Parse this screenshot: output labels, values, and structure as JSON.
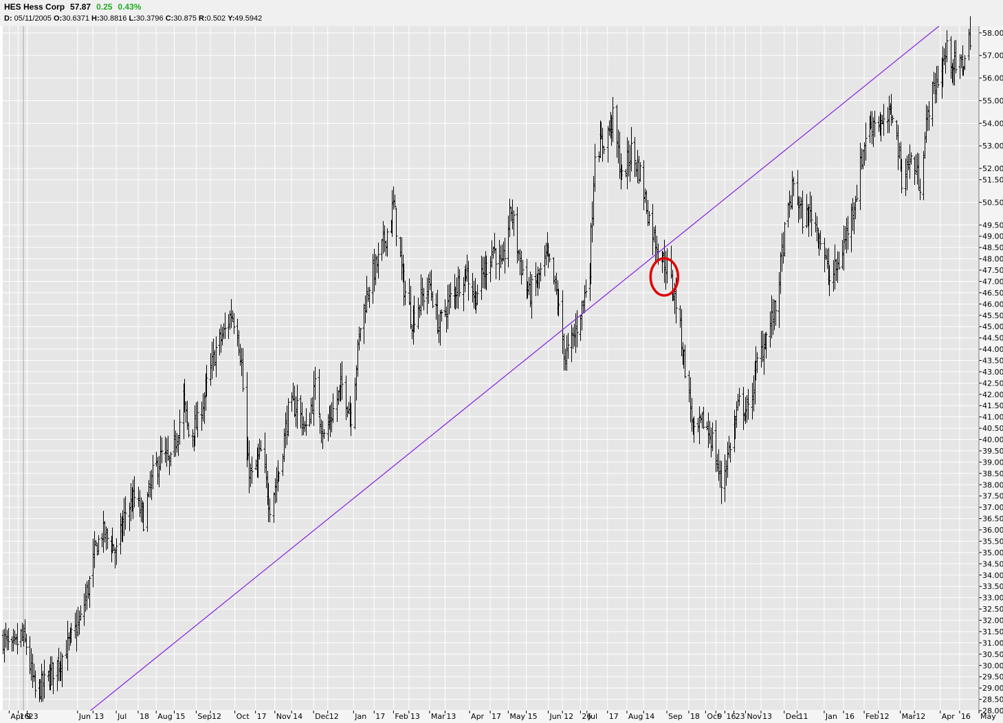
{
  "header": {
    "symbol_name": "HES Hess Corp",
    "last_price": "57.87",
    "change": "0.25",
    "change_pct": "0.43%",
    "ohlc": {
      "date_label": "D:",
      "date": "05/11/2005",
      "open_label": "O:",
      "open": "30.6371",
      "high_label": "H:",
      "high": "30.8816",
      "low_label": "L:",
      "low": "30.3796",
      "close_label": "C:",
      "close": "30.875",
      "range_label": "R:",
      "range": "0.502",
      "y_label": "Y:",
      "y": "49.5942"
    }
  },
  "colors": {
    "plot_background": "#e6e6e6",
    "grid": "#ffffff",
    "bars": "#000000",
    "trendline": "#8a2be2",
    "highlight_circle": "#e00000",
    "change_positive": "#22aa22"
  },
  "chart_data": {
    "type": "ohlc-bar",
    "y_axis_position": "right",
    "ylim": [
      28.0,
      58.3
    ],
    "y_ticks": [
      "28.00",
      "28.50",
      "29.00",
      "29.50",
      "30.00",
      "30.50",
      "31.00",
      "31.50",
      "32.00",
      "32.50",
      "33.00",
      "33.50",
      "34.00",
      "34.50",
      "35.00",
      "35.50",
      "36.00",
      "36.50",
      "37.00",
      "37.50",
      "38.00",
      "38.50",
      "39.00",
      "39.50",
      "40.00",
      "40.50",
      "41.00",
      "41.50",
      "42.00",
      "42.50",
      "43.00",
      "43.50",
      "44.00",
      "44.50",
      "45.00",
      "45.50",
      "46.00",
      "46.50",
      "47.00",
      "47.50",
      "48.00",
      "48.50",
      "49.00",
      "49.50",
      "50.50",
      "51.50",
      "52.00",
      "53.00",
      "54.00",
      "55.00",
      "56.00",
      "57.00",
      "58.00"
    ],
    "x_range": [
      "2005-04-04",
      "2007-05-01"
    ],
    "x_ticks": [
      {
        "date": "2005-04-09",
        "label": "Apr 9"
      },
      {
        "date": "2005-04-16",
        "label": "16"
      },
      {
        "date": "2005-04-23",
        "label": "23"
      },
      {
        "date": "2005-06-01",
        "label": "Jun"
      },
      {
        "date": "2005-06-13",
        "label": "13"
      },
      {
        "date": "2005-07-01",
        "label": "Jul"
      },
      {
        "date": "2005-07-18",
        "label": "18"
      },
      {
        "date": "2005-08-01",
        "label": "Aug"
      },
      {
        "date": "2005-08-15",
        "label": "15"
      },
      {
        "date": "2005-09-01",
        "label": "Sep"
      },
      {
        "date": "2005-09-12",
        "label": "12"
      },
      {
        "date": "2005-10-01",
        "label": "Oct"
      },
      {
        "date": "2005-10-17",
        "label": "17"
      },
      {
        "date": "2005-11-01",
        "label": "Nov"
      },
      {
        "date": "2005-11-14",
        "label": "14"
      },
      {
        "date": "2005-12-01",
        "label": "Dec"
      },
      {
        "date": "2005-12-12",
        "label": "12"
      },
      {
        "date": "2006-01-01",
        "label": "Jan"
      },
      {
        "date": "2006-01-17",
        "label": "17"
      },
      {
        "date": "2006-02-01",
        "label": "Feb"
      },
      {
        "date": "2006-02-13",
        "label": "13"
      },
      {
        "date": "2006-03-01",
        "label": "Mar"
      },
      {
        "date": "2006-03-13",
        "label": "13"
      },
      {
        "date": "2006-04-01",
        "label": "Apr"
      },
      {
        "date": "2006-04-17",
        "label": "17"
      },
      {
        "date": "2006-05-01",
        "label": "May"
      },
      {
        "date": "2006-05-15",
        "label": "15"
      },
      {
        "date": "2006-06-01",
        "label": "Jun"
      },
      {
        "date": "2006-06-12",
        "label": "12"
      },
      {
        "date": "2006-06-26",
        "label": "26"
      },
      {
        "date": "2006-07-01",
        "label": "Jul"
      },
      {
        "date": "2006-07-17",
        "label": "17"
      },
      {
        "date": "2006-08-01",
        "label": "Aug"
      },
      {
        "date": "2006-08-14",
        "label": "14"
      },
      {
        "date": "2006-09-01",
        "label": "Sep"
      },
      {
        "date": "2006-09-18",
        "label": "18"
      },
      {
        "date": "2006-10-01",
        "label": "Oct"
      },
      {
        "date": "2006-10-09",
        "label": "9"
      },
      {
        "date": "2006-10-16",
        "label": "16"
      },
      {
        "date": "2006-10-23",
        "label": "23"
      },
      {
        "date": "2006-11-01",
        "label": "Nov"
      },
      {
        "date": "2006-11-13",
        "label": "13"
      },
      {
        "date": "2006-12-01",
        "label": "Dec"
      },
      {
        "date": "2006-12-11",
        "label": "11"
      },
      {
        "date": "2007-01-01",
        "label": "Jan"
      },
      {
        "date": "2007-01-16",
        "label": "16"
      },
      {
        "date": "2007-02-01",
        "label": "Feb"
      },
      {
        "date": "2007-02-12",
        "label": "12"
      },
      {
        "date": "2007-03-01",
        "label": "Mar"
      },
      {
        "date": "2007-03-12",
        "label": "12"
      },
      {
        "date": "2007-04-01",
        "label": "Apr"
      },
      {
        "date": "2007-04-16",
        "label": "16"
      },
      {
        "date": "2007-05-01",
        "label": "May"
      }
    ],
    "price_path": [
      [
        "2005-04-04",
        31.2
      ],
      [
        "2005-04-11",
        30.6
      ],
      [
        "2005-04-18",
        31.3
      ],
      [
        "2005-04-22",
        30.9
      ],
      [
        "2005-04-29",
        28.8
      ],
      [
        "2005-05-06",
        29.2
      ],
      [
        "2005-05-13",
        29.8
      ],
      [
        "2005-05-20",
        30.4
      ],
      [
        "2005-05-27",
        31.2
      ],
      [
        "2005-06-03",
        32.0
      ],
      [
        "2005-06-10",
        33.7
      ],
      [
        "2005-06-15",
        35.2
      ],
      [
        "2005-06-20",
        35.9
      ],
      [
        "2005-06-27",
        35.4
      ],
      [
        "2005-07-01",
        35.0
      ],
      [
        "2005-07-08",
        36.8
      ],
      [
        "2005-07-15",
        37.4
      ],
      [
        "2005-07-22",
        36.5
      ],
      [
        "2005-07-29",
        38.4
      ],
      [
        "2005-08-05",
        39.3
      ],
      [
        "2005-08-12",
        38.9
      ],
      [
        "2005-08-19",
        40.8
      ],
      [
        "2005-08-22",
        41.8
      ],
      [
        "2005-08-26",
        40.2
      ],
      [
        "2005-09-02",
        40.7
      ],
      [
        "2005-09-09",
        42.4
      ],
      [
        "2005-09-16",
        44.0
      ],
      [
        "2005-09-23",
        44.8
      ],
      [
        "2005-09-28",
        45.6
      ],
      [
        "2005-10-03",
        44.9
      ],
      [
        "2005-10-06",
        43.3
      ],
      [
        "2005-10-10",
        39.1
      ],
      [
        "2005-10-14",
        38.3
      ],
      [
        "2005-10-21",
        39.4
      ],
      [
        "2005-10-28",
        37.1
      ],
      [
        "2005-11-04",
        38.6
      ],
      [
        "2005-11-11",
        41.2
      ],
      [
        "2005-11-18",
        41.6
      ],
      [
        "2005-11-25",
        40.3
      ],
      [
        "2005-12-02",
        42.3
      ],
      [
        "2005-12-09",
        40.1
      ],
      [
        "2005-12-16",
        41.3
      ],
      [
        "2005-12-23",
        42.4
      ],
      [
        "2005-12-30",
        41.1
      ],
      [
        "2006-01-06",
        45.0
      ],
      [
        "2006-01-13",
        46.9
      ],
      [
        "2006-01-20",
        47.9
      ],
      [
        "2006-01-27",
        49.2
      ],
      [
        "2006-02-01",
        50.4
      ],
      [
        "2006-02-08",
        47.0
      ],
      [
        "2006-02-15",
        45.3
      ],
      [
        "2006-02-22",
        46.2
      ],
      [
        "2006-03-01",
        46.8
      ],
      [
        "2006-03-08",
        45.0
      ],
      [
        "2006-03-15",
        46.0
      ],
      [
        "2006-03-22",
        46.8
      ],
      [
        "2006-03-29",
        47.5
      ],
      [
        "2006-04-05",
        46.3
      ],
      [
        "2006-04-12",
        47.4
      ],
      [
        "2006-04-19",
        48.5
      ],
      [
        "2006-04-26",
        47.5
      ],
      [
        "2006-05-03",
        50.2
      ],
      [
        "2006-05-10",
        47.9
      ],
      [
        "2006-05-17",
        46.4
      ],
      [
        "2006-05-24",
        47.1
      ],
      [
        "2006-05-31",
        48.1
      ],
      [
        "2006-06-07",
        46.5
      ],
      [
        "2006-06-14",
        43.6
      ],
      [
        "2006-06-21",
        44.6
      ],
      [
        "2006-06-28",
        46.1
      ],
      [
        "2006-07-03",
        47.7
      ],
      [
        "2006-07-07",
        52.8
      ],
      [
        "2006-07-14",
        53.2
      ],
      [
        "2006-07-21",
        54.2
      ],
      [
        "2006-07-28",
        51.5
      ],
      [
        "2006-08-04",
        52.8
      ],
      [
        "2006-08-11",
        51.8
      ],
      [
        "2006-08-18",
        49.8
      ],
      [
        "2006-08-25",
        48.4
      ],
      [
        "2006-09-01",
        47.6
      ],
      [
        "2006-09-08",
        46.1
      ],
      [
        "2006-09-15",
        43.2
      ],
      [
        "2006-09-22",
        40.1
      ],
      [
        "2006-09-29",
        40.8
      ],
      [
        "2006-10-06",
        40.0
      ],
      [
        "2006-10-13",
        38.0
      ],
      [
        "2006-10-20",
        39.8
      ],
      [
        "2006-10-27",
        41.6
      ],
      [
        "2006-11-03",
        41.2
      ],
      [
        "2006-11-10",
        43.4
      ],
      [
        "2006-11-17",
        44.6
      ],
      [
        "2006-11-24",
        45.8
      ],
      [
        "2006-12-01",
        49.1
      ],
      [
        "2006-12-08",
        51.3
      ],
      [
        "2006-12-15",
        49.8
      ],
      [
        "2006-12-22",
        50.0
      ],
      [
        "2006-12-29",
        48.9
      ],
      [
        "2007-01-05",
        47.0
      ],
      [
        "2007-01-12",
        47.8
      ],
      [
        "2007-01-19",
        49.3
      ],
      [
        "2007-01-26",
        51.0
      ],
      [
        "2007-02-02",
        53.5
      ],
      [
        "2007-02-09",
        54.2
      ],
      [
        "2007-02-16",
        53.8
      ],
      [
        "2007-02-23",
        54.6
      ],
      [
        "2007-03-02",
        51.6
      ],
      [
        "2007-03-09",
        52.4
      ],
      [
        "2007-03-16",
        51.4
      ],
      [
        "2007-03-23",
        54.8
      ],
      [
        "2007-03-30",
        56.0
      ],
      [
        "2007-04-06",
        57.2
      ],
      [
        "2007-04-13",
        56.4
      ],
      [
        "2007-04-20",
        56.8
      ],
      [
        "2007-04-24",
        57.9
      ]
    ],
    "trendline": {
      "from": [
        "2005-06-11",
        28.0
      ],
      "to": [
        "2007-03-31",
        58.3
      ]
    },
    "annotation": {
      "type": "circle",
      "date": "2006-08-30",
      "price": 47.2,
      "color": "red"
    }
  }
}
